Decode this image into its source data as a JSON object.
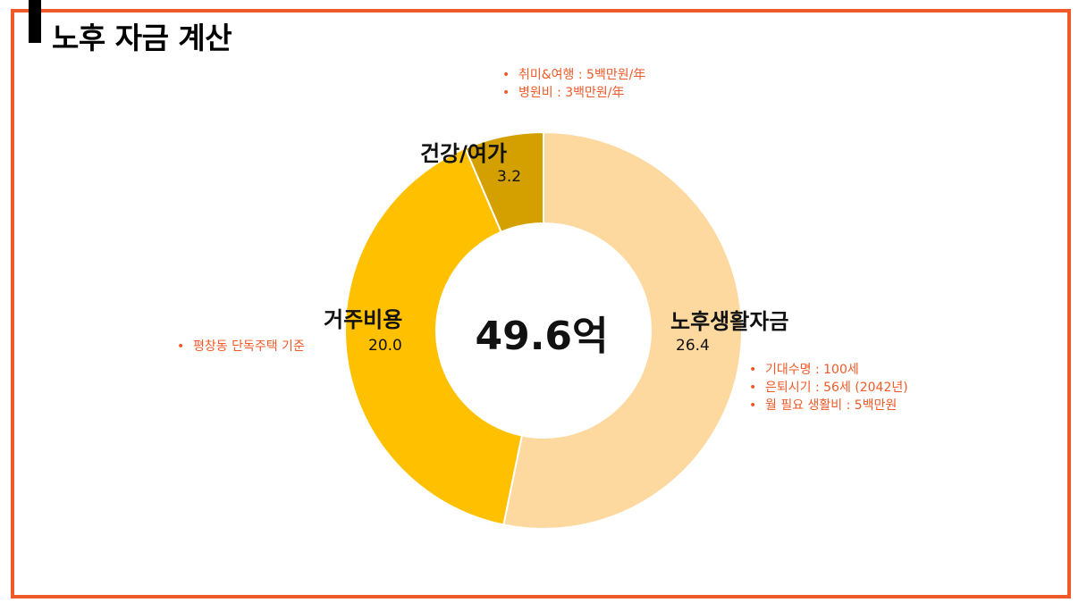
{
  "title": "노후 자금 계산",
  "chart_data": {
    "type": "pie",
    "variant": "donut",
    "total_label": "49.6억",
    "series": [
      {
        "name": "노후생활자금",
        "value": 26.4,
        "value_label": "26.4",
        "color": "#fdd9a0"
      },
      {
        "name": "거주비용",
        "value": 20.0,
        "value_label": "20.0",
        "color": "#ffc000"
      },
      {
        "name": "건강/여가",
        "value": 3.2,
        "value_label": "3.2",
        "color": "#d4a000"
      }
    ]
  },
  "notes": {
    "health": [
      "취미&여행 : 5백만원/年",
      "병원비 : 3백만원/年"
    ],
    "housing": [
      "평창동 단독주택 기준"
    ],
    "living": [
      "기대수명 : 100세",
      "은퇴시기 : 56세 (2042년)",
      "월 필요 생활비 : 5백만원"
    ]
  },
  "colors": {
    "accent": "#f05a28"
  }
}
